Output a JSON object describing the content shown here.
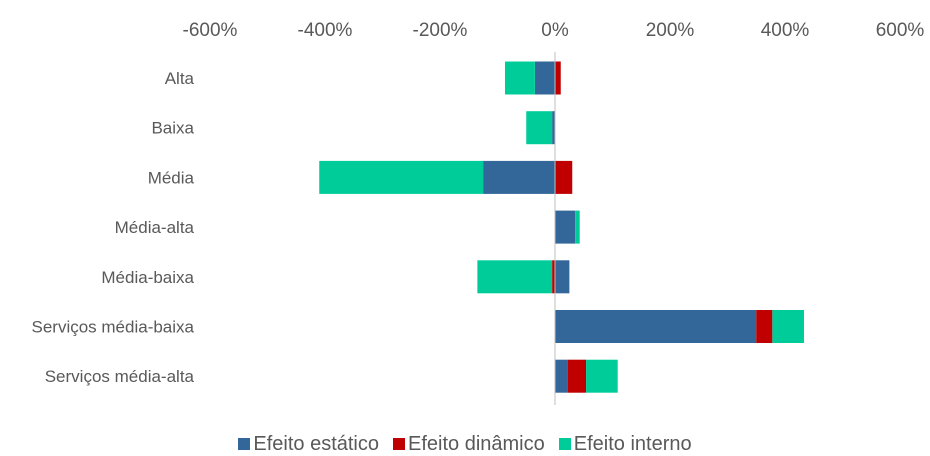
{
  "chart_data": {
    "type": "bar",
    "orientation": "horizontal",
    "stacked": true,
    "categories": [
      "Alta",
      "Baixa",
      "Média",
      "Média-alta",
      "Média-baixa",
      "Serviços média-baixa",
      "Serviços média-alta"
    ],
    "series": [
      {
        "name": "Efeito estático",
        "color": "#336699",
        "values": [
          -35,
          -5,
          -125,
          35,
          25,
          350,
          22
        ]
      },
      {
        "name": "Efeito dinâmico",
        "color": "#C00000",
        "values": [
          10,
          0,
          30,
          0,
          -5,
          28,
          32
        ]
      },
      {
        "name": "Efeito interno",
        "color": "#00CC99",
        "values": [
          -52,
          -45,
          -285,
          8,
          -130,
          55,
          55
        ]
      }
    ],
    "xlim": [
      -600,
      600
    ],
    "xticks": [
      "-600%",
      "-400%",
      "-200%",
      "0%",
      "200%",
      "400%",
      "600%"
    ],
    "tick_values": [
      -600,
      -400,
      -200,
      0,
      200,
      400,
      600
    ],
    "x_axis_position": "top",
    "grid": false,
    "legend_position": "bottom",
    "title": "",
    "xlabel": "",
    "ylabel": ""
  }
}
